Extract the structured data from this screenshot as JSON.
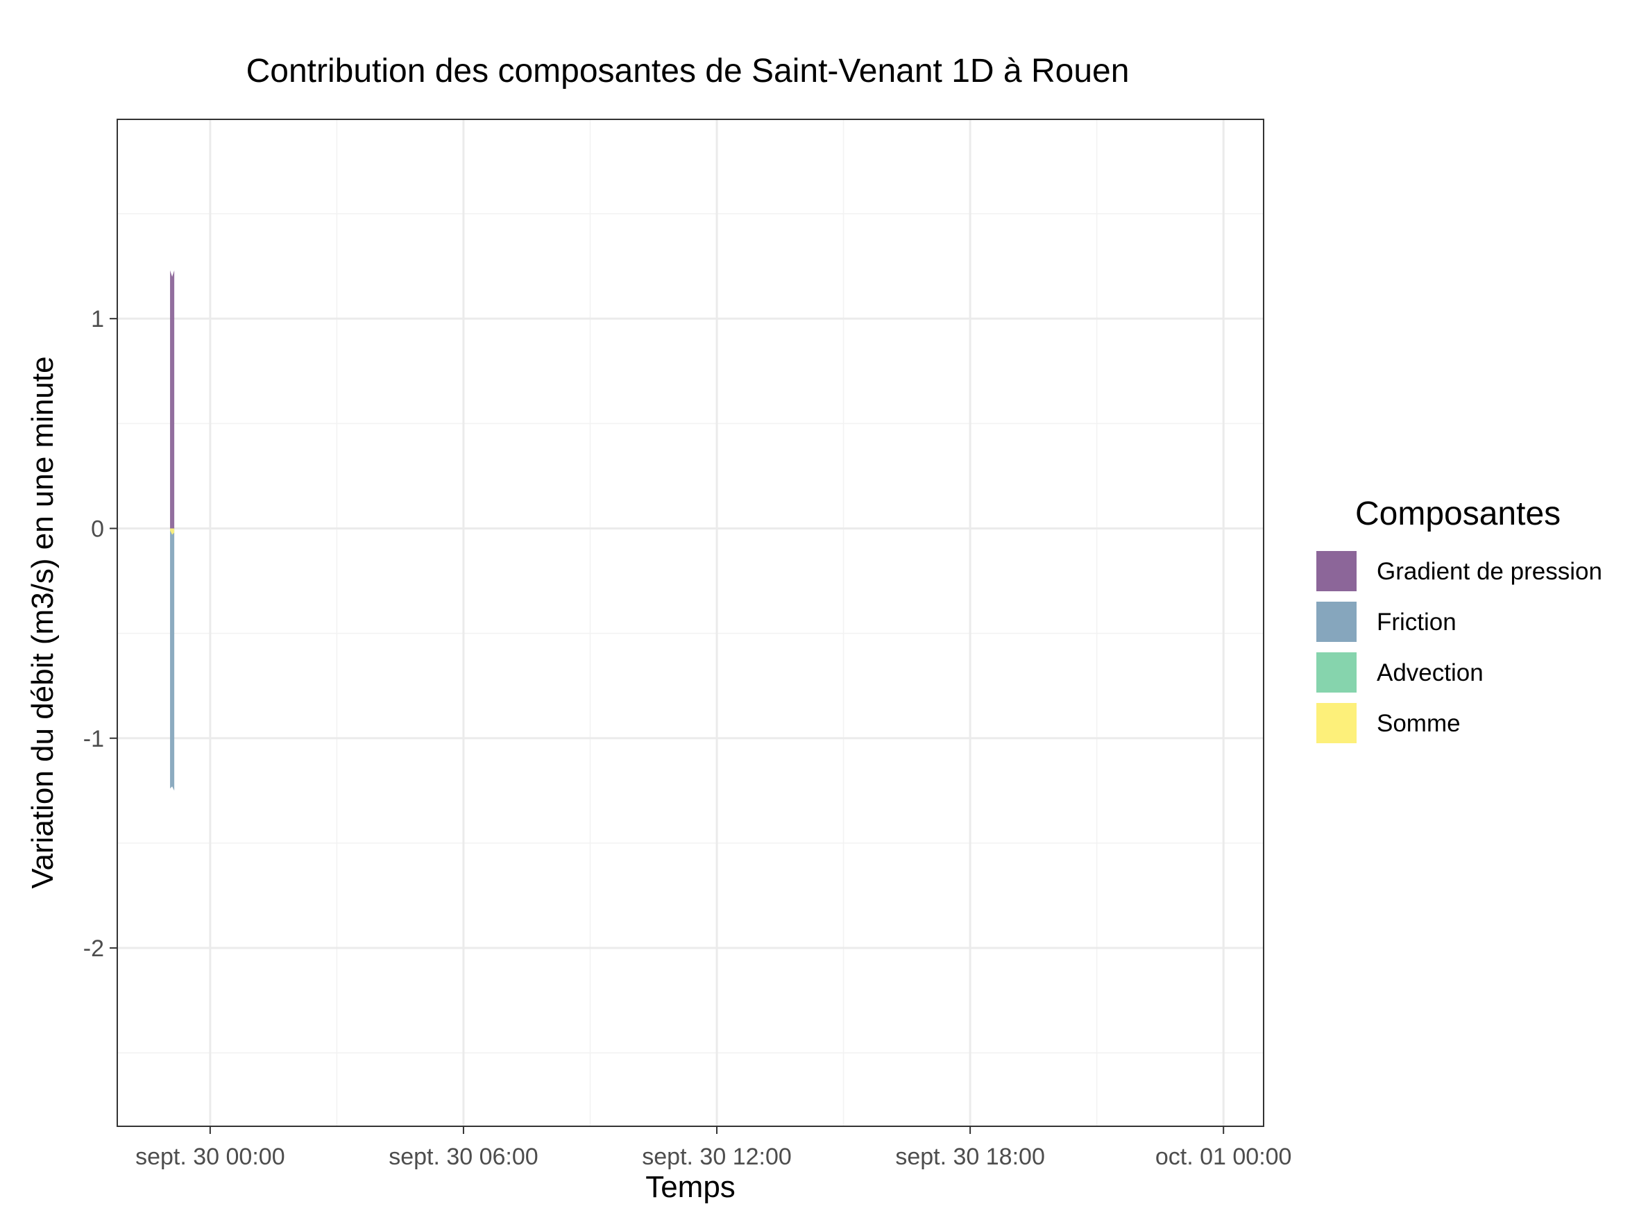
{
  "chart_data": {
    "type": "area",
    "title": "Contribution des composantes de Saint-Venant 1D à Rouen",
    "xlabel": "Temps",
    "ylabel": "Variation du débit (m3/s) en une minute",
    "x_ticks": [
      "sept. 30 00:00",
      "sept. 30 06:00",
      "sept. 30 12:00",
      "sept. 30 18:00",
      "oct. 01 00:00"
    ],
    "x_tick_hours": [
      0,
      6,
      12,
      18,
      24
    ],
    "xlim_hours": [
      -2.2,
      24.95
    ],
    "y_ticks": [
      -2,
      -1,
      0,
      1
    ],
    "y_tick_labels": [
      "-2",
      "-1",
      "0",
      "1"
    ],
    "ylim": [
      -2.85,
      1.95
    ],
    "grid": true,
    "legend": {
      "title": "Composantes",
      "position": "right",
      "entries": [
        {
          "label": "Gradient de pression",
          "color": "#8c6699"
        },
        {
          "label": "Friction",
          "color": "#86a6bd"
        },
        {
          "label": "Advection",
          "color": "#86d4ad"
        },
        {
          "label": "Somme",
          "color": "#fdf07a"
        }
      ]
    },
    "series": [
      {
        "name": "Gradient de pression",
        "color": "#8c6699",
        "x_hours": [
          -0.95,
          -0.9,
          -0.85
        ],
        "values": [
          1.23,
          1.2,
          1.23
        ]
      },
      {
        "name": "Friction",
        "color": "#86a6bd",
        "x_hours": [
          -0.95,
          -0.9,
          -0.85
        ],
        "values": [
          -1.24,
          -1.23,
          -1.25
        ]
      },
      {
        "name": "Advection",
        "color": "#86d4ad",
        "x_hours": [
          -0.95,
          -0.9,
          -0.85
        ],
        "values": [
          0.0,
          0.0,
          0.0
        ]
      },
      {
        "name": "Somme",
        "color": "#fdf07a",
        "x_hours": [
          -0.95,
          -0.9,
          -0.85
        ],
        "values": [
          -0.01,
          -0.03,
          -0.02
        ]
      }
    ]
  }
}
